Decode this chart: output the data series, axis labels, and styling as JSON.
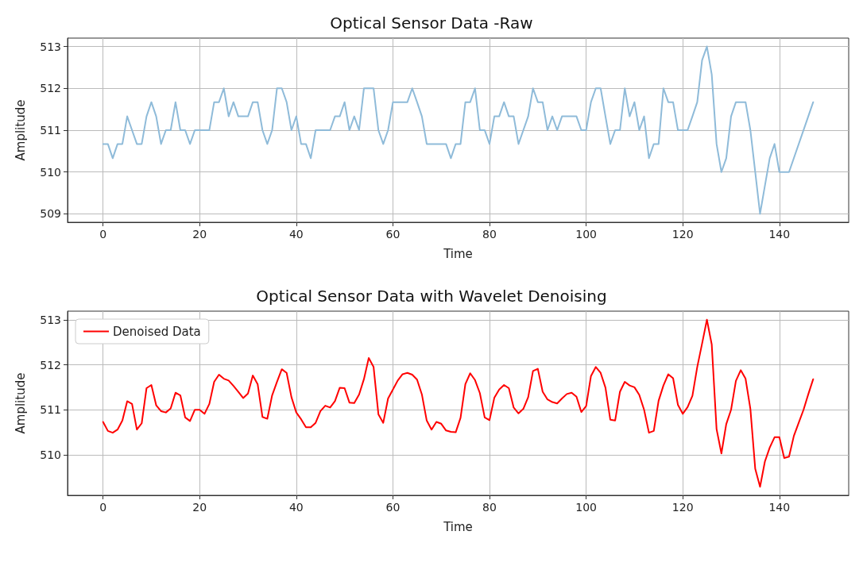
{
  "chart_data": [
    {
      "type": "line",
      "title": "Optical Sensor Data -Raw",
      "xlabel": "Time",
      "ylabel": "Amplitude",
      "xlim": [
        -7.35,
        154.35
      ],
      "ylim": [
        508.8,
        513.2
      ],
      "xticks": [
        0,
        20,
        40,
        60,
        80,
        100,
        120,
        140
      ],
      "yticks": [
        509,
        510,
        511,
        512,
        513
      ],
      "grid": true,
      "series": [
        {
          "color": "#8fbbd9",
          "x": [
            0,
            1,
            2,
            3,
            4,
            5,
            6,
            7,
            8,
            9,
            10,
            11,
            12,
            13,
            14,
            15,
            16,
            17,
            18,
            19,
            20,
            21,
            22,
            23,
            24,
            25,
            26,
            27,
            28,
            29,
            30,
            31,
            32,
            33,
            34,
            35,
            36,
            37,
            38,
            39,
            40,
            41,
            42,
            43,
            44,
            45,
            46,
            47,
            48,
            49,
            50,
            51,
            52,
            53,
            54,
            55,
            56,
            57,
            58,
            59,
            60,
            61,
            62,
            63,
            64,
            65,
            66,
            67,
            68,
            69,
            70,
            71,
            72,
            73,
            74,
            75,
            76,
            77,
            78,
            79,
            80,
            81,
            82,
            83,
            84,
            85,
            86,
            87,
            88,
            89,
            90,
            91,
            92,
            93,
            94,
            95,
            96,
            97,
            98,
            99,
            100,
            101,
            102,
            103,
            104,
            105,
            106,
            107,
            108,
            109,
            110,
            111,
            112,
            113,
            114,
            115,
            116,
            117,
            118,
            119,
            120,
            121,
            122,
            123,
            124,
            125,
            126,
            127,
            128,
            129,
            130,
            131,
            132,
            133,
            134,
            135,
            136,
            137,
            138,
            139,
            140,
            141,
            142,
            147
          ],
          "values": [
            510.67,
            510.67,
            510.33,
            510.67,
            510.67,
            511.33,
            511,
            510.67,
            510.67,
            511.33,
            511.67,
            511.33,
            510.67,
            511,
            511,
            511.67,
            511,
            511,
            510.67,
            511,
            511,
            511,
            511,
            511.67,
            511.67,
            512,
            511.33,
            511.67,
            511.33,
            511.33,
            511.33,
            511.67,
            511.67,
            511,
            510.67,
            511,
            512,
            512,
            511.67,
            511,
            511.33,
            510.67,
            510.67,
            510.33,
            511,
            511,
            511,
            511,
            511.33,
            511.33,
            511.67,
            511,
            511.33,
            511,
            512,
            512,
            512,
            511,
            510.67,
            511,
            511.67,
            511.67,
            511.67,
            511.67,
            512,
            511.67,
            511.33,
            510.67,
            510.67,
            510.67,
            510.67,
            510.67,
            510.33,
            510.67,
            510.67,
            511.67,
            511.67,
            512,
            511,
            511,
            510.67,
            511.33,
            511.33,
            511.67,
            511.33,
            511.33,
            510.67,
            511,
            511.33,
            512,
            511.67,
            511.67,
            511,
            511.33,
            511,
            511.33,
            511.33,
            511.33,
            511.33,
            511,
            511,
            511.67,
            512,
            512,
            511.33,
            510.67,
            511,
            511,
            512,
            511.33,
            511.67,
            511,
            511.33,
            510.33,
            510.67,
            510.67,
            512,
            511.67,
            511.67,
            511,
            511,
            511,
            511.33,
            511.67,
            512.67,
            513,
            512.33,
            510.67,
            510,
            510.33,
            511.33,
            511.67,
            511.67,
            511.67,
            511,
            510,
            509,
            509.67,
            510.33,
            510.67,
            510,
            510,
            510,
            511.67
          ]
        }
      ]
    },
    {
      "type": "line",
      "title": "Optical Sensor Data with Wavelet Denoising",
      "xlabel": "Time",
      "ylabel": "Amplitude",
      "xlim": [
        -7.35,
        154.35
      ],
      "ylim": [
        509.1,
        513.19
      ],
      "xticks": [
        0,
        20,
        40,
        60,
        80,
        100,
        120,
        140
      ],
      "yticks": [
        510,
        511,
        512,
        513
      ],
      "grid": true,
      "legend": "top left",
      "series": [
        {
          "name": "Denoised Data",
          "color": "#ff0000",
          "x": [
            0,
            1,
            2,
            3,
            4,
            5,
            6,
            7,
            8,
            9,
            10,
            11,
            12,
            13,
            14,
            15,
            16,
            17,
            18,
            19,
            20,
            21,
            22,
            23,
            24,
            25,
            26,
            27,
            28,
            29,
            30,
            31,
            32,
            33,
            34,
            35,
            36,
            37,
            38,
            39,
            40,
            41,
            42,
            43,
            44,
            45,
            46,
            47,
            48,
            49,
            50,
            51,
            52,
            53,
            54,
            55,
            56,
            57,
            58,
            59,
            60,
            61,
            62,
            63,
            64,
            65,
            66,
            67,
            68,
            69,
            70,
            71,
            72,
            73,
            74,
            75,
            76,
            77,
            78,
            79,
            80,
            81,
            82,
            83,
            84,
            85,
            86,
            87,
            88,
            89,
            90,
            91,
            92,
            93,
            94,
            95,
            96,
            97,
            98,
            99,
            100,
            101,
            102,
            103,
            104,
            105,
            106,
            107,
            108,
            109,
            110,
            111,
            112,
            113,
            114,
            115,
            116,
            117,
            118,
            119,
            120,
            121,
            122,
            123,
            124,
            125,
            126,
            127,
            128,
            129,
            130,
            131,
            132,
            133,
            134,
            135,
            136,
            137,
            138,
            139,
            140,
            141,
            142,
            143,
            144,
            145,
            146,
            147
          ],
          "values": [
            510.73,
            510.53,
            510.49,
            510.56,
            510.76,
            511.19,
            511.13,
            510.56,
            510.7,
            511.48,
            511.55,
            511.1,
            510.97,
            510.94,
            511.03,
            511.38,
            511.32,
            510.83,
            510.75,
            511,
            511,
            510.91,
            511.13,
            511.62,
            511.78,
            511.69,
            511.65,
            511.53,
            511.4,
            511.26,
            511.36,
            511.76,
            511.57,
            510.84,
            510.8,
            511.32,
            511.62,
            511.9,
            511.82,
            511.28,
            510.94,
            510.79,
            510.61,
            510.61,
            510.71,
            510.97,
            511.09,
            511.05,
            511.19,
            511.49,
            511.48,
            511.16,
            511.15,
            511.34,
            511.68,
            512.15,
            511.95,
            510.9,
            510.71,
            511.25,
            511.45,
            511.65,
            511.79,
            511.82,
            511.78,
            511.67,
            511.34,
            510.76,
            510.56,
            510.73,
            510.69,
            510.54,
            510.51,
            510.5,
            510.82,
            511.57,
            511.81,
            511.66,
            511.37,
            510.83,
            510.77,
            511.27,
            511.45,
            511.55,
            511.48,
            511.05,
            510.92,
            511.02,
            511.28,
            511.86,
            511.91,
            511.4,
            511.23,
            511.17,
            511.14,
            511.25,
            511.35,
            511.38,
            511.29,
            510.95,
            511.08,
            511.75,
            511.95,
            511.82,
            511.49,
            510.78,
            510.76,
            511.4,
            511.62,
            511.54,
            511.5,
            511.33,
            511,
            510.49,
            510.53,
            511.2,
            511.54,
            511.79,
            511.7,
            511.11,
            510.91,
            511.06,
            511.31,
            511.95,
            512.47,
            513,
            512.45,
            510.57,
            510.03,
            510.68,
            511,
            511.64,
            511.88,
            511.69,
            511.02,
            509.69,
            509.29,
            509.85,
            510.16,
            510.39,
            510.39,
            509.93,
            509.96,
            510.42,
            510.71,
            511,
            511.35,
            511.68
          ]
        }
      ]
    }
  ]
}
